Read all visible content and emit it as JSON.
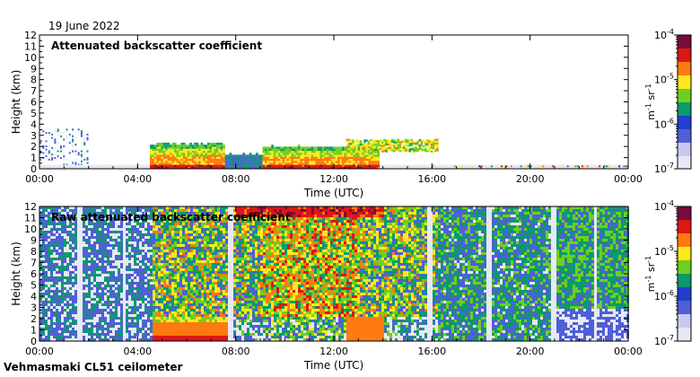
{
  "date": "19 June 2022",
  "footer": "Vehmasmaki CL51 ceilometer",
  "chart_data": [
    {
      "type": "heatmap",
      "title": "Attenuated backscatter coefficient",
      "xlabel": "Time (UTC)",
      "ylabel": "Height (km)",
      "x_ticks": [
        "00:00",
        "04:00",
        "08:00",
        "12:00",
        "16:00",
        "20:00",
        "00:00"
      ],
      "y_ticks": [
        "0",
        "1",
        "2",
        "3",
        "4",
        "5",
        "6",
        "7",
        "8",
        "9",
        "10",
        "11",
        "12"
      ],
      "ylim": [
        0,
        12
      ],
      "xlim_hours": [
        0,
        24
      ],
      "colorbar": {
        "labels": [
          "10-4",
          "10-5",
          "10-6",
          "10-7"
        ],
        "unit": "m-1 sr-1",
        "scale": "log",
        "range": [
          1e-07,
          0.0001
        ]
      },
      "colors": [
        "#e8e8f5",
        "#4f5fd6",
        "#0a9a6c",
        "#6fcf1e",
        "#ffe81a",
        "#ff7a12",
        "#dd1616",
        "#7a0a3c"
      ],
      "features": [
        {
          "name": "boundary layer",
          "x_start_h": 4.5,
          "x_end_h": 13.8,
          "height_km": [
            0,
            2.2
          ]
        },
        {
          "name": "cloud layer",
          "x_start_h": 12.5,
          "x_end_h": 16.2,
          "height_km": [
            1.5,
            2.5
          ]
        }
      ]
    },
    {
      "type": "heatmap",
      "title": "Raw attenuated backscatter coefficient",
      "xlabel": "Time (UTC)",
      "ylabel": "Height (km)",
      "x_ticks": [
        "00:00",
        "04:00",
        "08:00",
        "12:00",
        "16:00",
        "20:00",
        "00:00"
      ],
      "y_ticks": [
        "0",
        "1",
        "2",
        "3",
        "4",
        "5",
        "6",
        "7",
        "8",
        "9",
        "10",
        "11",
        "12"
      ],
      "ylim": [
        0,
        12
      ],
      "xlim_hours": [
        0,
        24
      ],
      "colorbar": {
        "labels": [
          "10-4",
          "10-5",
          "10-6",
          "10-7"
        ],
        "unit": "m-1 sr-1",
        "scale": "log",
        "range": [
          1e-07,
          0.0001
        ]
      },
      "colors": [
        "#e8e8f5",
        "#4f5fd6",
        "#0a9a6c",
        "#6fcf1e",
        "#ffe81a",
        "#ff7a12",
        "#dd1616",
        "#7a0a3c"
      ]
    }
  ]
}
